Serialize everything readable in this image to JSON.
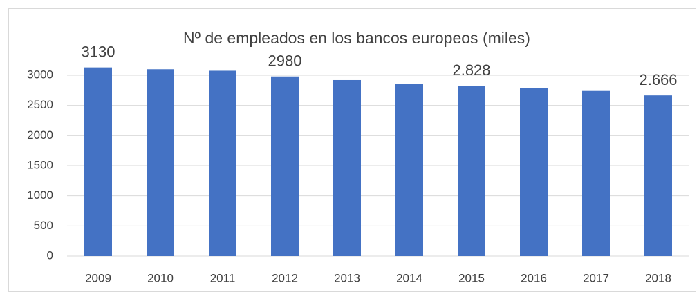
{
  "chart_data": {
    "type": "bar",
    "title": "Nº de empleados en los bancos europeos (miles)",
    "categories": [
      "2009",
      "2010",
      "2011",
      "2012",
      "2013",
      "2014",
      "2015",
      "2016",
      "2017",
      "2018"
    ],
    "values": [
      3130,
      3100,
      3075,
      2980,
      2920,
      2855,
      2828,
      2785,
      2740,
      2666
    ],
    "value_labels": [
      "3130",
      null,
      null,
      "2980",
      null,
      null,
      "2.828",
      null,
      null,
      "2.666"
    ],
    "color": "#4472c4",
    "ylim": [
      0,
      3500
    ],
    "yticks": [
      0,
      500,
      1000,
      1500,
      2000,
      2500,
      3000
    ],
    "grid": true
  }
}
